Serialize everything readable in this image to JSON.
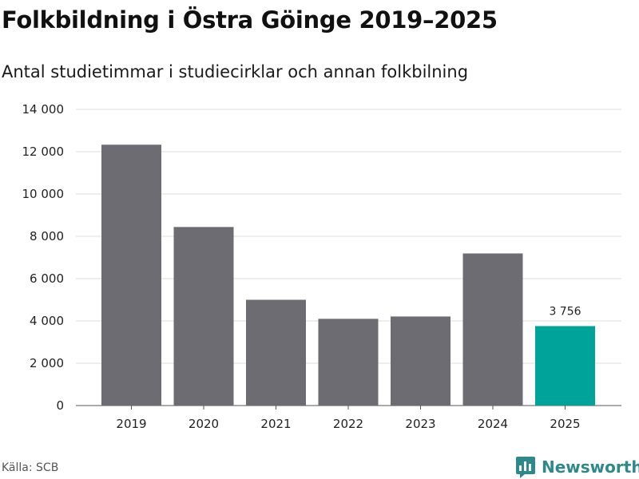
{
  "title": "Folkbildning i Östra Göinge 2019–2025",
  "subtitle": "Antal studietimmar i studiecirklar och annan folkbilning",
  "source": "Källa: SCB",
  "brand": {
    "name": "Newsworthy",
    "icon": "bar-chart-logo-icon"
  },
  "colors": {
    "bar": "#6d6c72",
    "highlight": "#00a39a",
    "grid": "#dddddd",
    "brand": "#2e8a8a"
  },
  "chart_data": {
    "type": "bar",
    "categories": [
      "2019",
      "2020",
      "2021",
      "2022",
      "2023",
      "2024",
      "2025"
    ],
    "values": [
      12330,
      8440,
      5000,
      4100,
      4210,
      7190,
      3756
    ],
    "highlight_index": 6,
    "data_labels": [
      {
        "index": 6,
        "text": "3 756"
      }
    ],
    "yticks": [
      "0",
      "2 000",
      "4 000",
      "6 000",
      "8 000",
      "10 000",
      "12 000",
      "14 000"
    ],
    "ylim": [
      0,
      14000
    ],
    "grid": true,
    "legend": "none"
  }
}
